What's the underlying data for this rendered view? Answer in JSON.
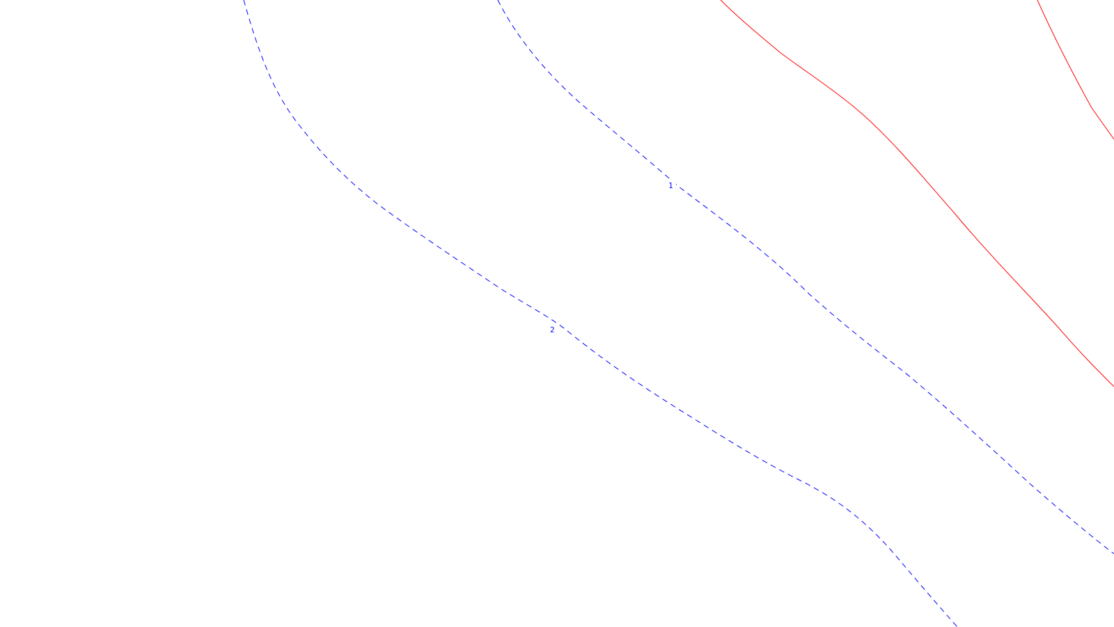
{
  "contours": [
    {
      "id": "contour-2",
      "label": "2",
      "style": "dashed",
      "color": "#0000ff"
    },
    {
      "id": "contour-1",
      "label": "1",
      "style": "dashed",
      "color": "#0000ff"
    },
    {
      "id": "contour-red-a",
      "label": "",
      "style": "solid",
      "color": "#ff0000"
    },
    {
      "id": "contour-red-b",
      "label": "",
      "style": "solid",
      "color": "#ff0000"
    }
  ]
}
